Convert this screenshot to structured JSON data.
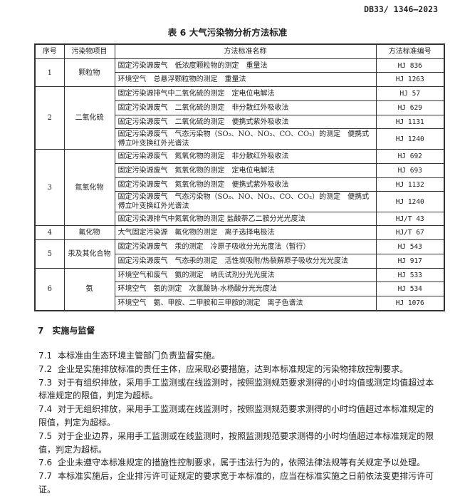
{
  "header": {
    "doc_number": "DB33/ 1346—2023"
  },
  "table": {
    "title": "表 6  大气污染物分析方法标准",
    "columns": [
      "序号",
      "污染物项目",
      "方法标准名称",
      "方法标准编号"
    ],
    "groups": [
      {
        "no": "1",
        "item": "颗粒物",
        "rows": [
          {
            "method": "固定污染源废气　低浓度颗粒物的测定　重量法",
            "code": "HJ 836"
          },
          {
            "method": "环境空气　总悬浮颗粒物的测定　重量法",
            "code": "HJ 1263"
          }
        ]
      },
      {
        "no": "2",
        "item": "二氧化硫",
        "rows": [
          {
            "method": "固定污染源排气中二氧化硫的测定　定电位电解法",
            "code": "HJ 57"
          },
          {
            "method": "固定污染源废气　二氧化硫的测定　非分散红外吸收法",
            "code": "HJ 629"
          },
          {
            "method": "固定污染源废气　二氧化硫的测定　便携式紫外吸收法",
            "code": "HJ 1131"
          },
          {
            "method": "固定污染源废气　气态污染物（SO₂、NO、NO₂、CO、CO₂）的测定　便携式傅立叶变换红外光谱法",
            "code": "HJ 1240"
          }
        ]
      },
      {
        "no": "3",
        "item": "氮氧化物",
        "rows": [
          {
            "method": "固定污染源废气　氮氧化物的测定　非分散红外吸收法",
            "code": "HJ 692"
          },
          {
            "method": "固定污染源废气　氮氧化物的测定　定电位电解法",
            "code": "HJ 693"
          },
          {
            "method": "固定污染源废气　氮氧化物的测定　便携式紫外吸收法",
            "code": "HJ 1132"
          },
          {
            "method": "固定污染源废气　气态污染物（SO₂、NO、NO₂、CO、CO₂）的测定　便携式傅立叶变换红外光谱法",
            "code": "HJ 1240"
          },
          {
            "method": "固定污染源排气中氮氧化物的测定 盐酸萘乙二胺分光光度法",
            "code": "HJ/T 43"
          }
        ]
      },
      {
        "no": "4",
        "item": "氟化物",
        "rows": [
          {
            "method": "大气固定污染源　氟化物的测定　离子选择电极法",
            "code": "HJ/T 67"
          }
        ]
      },
      {
        "no": "5",
        "item": "汞及其化合物",
        "rows": [
          {
            "method": "固定污染源废气　汞的测定　冷原子吸收分光光度法（暂行）",
            "code": "HJ 543"
          },
          {
            "method": "固定污染源废气　气态汞的测定　活性炭吸附/热裂解原子吸收分光光度法",
            "code": "HJ 917"
          }
        ]
      },
      {
        "no": "6",
        "item": "氨",
        "rows": [
          {
            "method": "环境空气和废气　氨的测定　纳氏试剂分光光度法",
            "code": "HJ 533"
          },
          {
            "method": "环境空气　氨的测定　次氯酸钠-水杨酸分光光度法",
            "code": "HJ 534"
          },
          {
            "method": "环境空气　氨、甲胺、二甲胺和三甲胺的测定　离子色谱法",
            "code": "HJ 1076"
          }
        ]
      }
    ]
  },
  "section": {
    "heading": "7　实施与监督",
    "clauses": [
      {
        "num": "7.1",
        "text": "本标准由生态环境主管部门负责监督实施。"
      },
      {
        "num": "7.2",
        "text": "企业是实施排放标准的责任主体，应采取必要措施，达到本标准规定的污染物排放控制要求。"
      },
      {
        "num": "7.3",
        "text": "对于有组织排放，采用手工监测或在线监测时，按照监测规范要求测得的小时均值或测定均值超过本标准规定的限值，判定为超标。"
      },
      {
        "num": "7.4",
        "text": "对于无组织排放，采用手工监测或在线监测时，按照监测规范要求测得的小时均值超过本标准规定的限值，判定为超标。"
      },
      {
        "num": "7.5",
        "text": "对于企业边界，采用手工监测或在线监测时，按照监测规范要求测得的小时均值超过本标准规定的限值，判定为超标。"
      },
      {
        "num": "7.6",
        "text": "企业未遵守本标准规定的措施性控制要求，属于违法行为的，依照法律法规等有关规定予以处理。"
      },
      {
        "num": "7.7",
        "text": "本标准实施后，企业排污许可证规定的要求宽于本标准的，应当在标准实施之日前依法变更排污许可证。"
      }
    ]
  }
}
